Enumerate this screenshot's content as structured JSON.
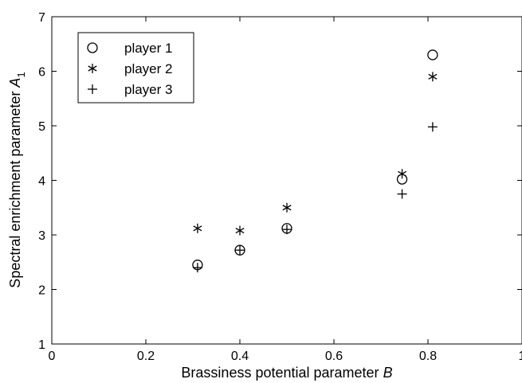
{
  "chart_data": {
    "type": "scatter",
    "xlabel": "Brassiness potential parameter",
    "xlabel_var": "B",
    "ylabel": "Spectral enrichment parameter",
    "ylabel_var": "A",
    "ylabel_sub": "1",
    "xlim": [
      0,
      1
    ],
    "ylim": [
      1,
      7
    ],
    "x_ticks": [
      0,
      0.2,
      0.4,
      0.6,
      0.8,
      1
    ],
    "x_tick_labels": [
      "0",
      "0.2",
      "0.4",
      "0.6",
      "0.8",
      "1"
    ],
    "y_ticks": [
      1,
      2,
      3,
      4,
      5,
      6,
      7
    ],
    "y_tick_labels": [
      "1",
      "2",
      "3",
      "4",
      "5",
      "6",
      "7"
    ],
    "grid": false,
    "legend_position": "top-left",
    "series": [
      {
        "name": "player 1",
        "marker": "circle",
        "points": [
          [
            0.31,
            2.45
          ],
          [
            0.4,
            2.72
          ],
          [
            0.5,
            3.12
          ],
          [
            0.745,
            4.02
          ],
          [
            0.81,
            6.3
          ]
        ]
      },
      {
        "name": "player 2",
        "marker": "asterisk",
        "points": [
          [
            0.31,
            3.12
          ],
          [
            0.4,
            3.08
          ],
          [
            0.5,
            3.5
          ],
          [
            0.745,
            4.12
          ],
          [
            0.81,
            5.9
          ]
        ]
      },
      {
        "name": "player 3",
        "marker": "plus",
        "points": [
          [
            0.31,
            2.4
          ],
          [
            0.4,
            2.72
          ],
          [
            0.5,
            3.1
          ],
          [
            0.745,
            3.75
          ],
          [
            0.81,
            4.98
          ]
        ]
      }
    ]
  }
}
